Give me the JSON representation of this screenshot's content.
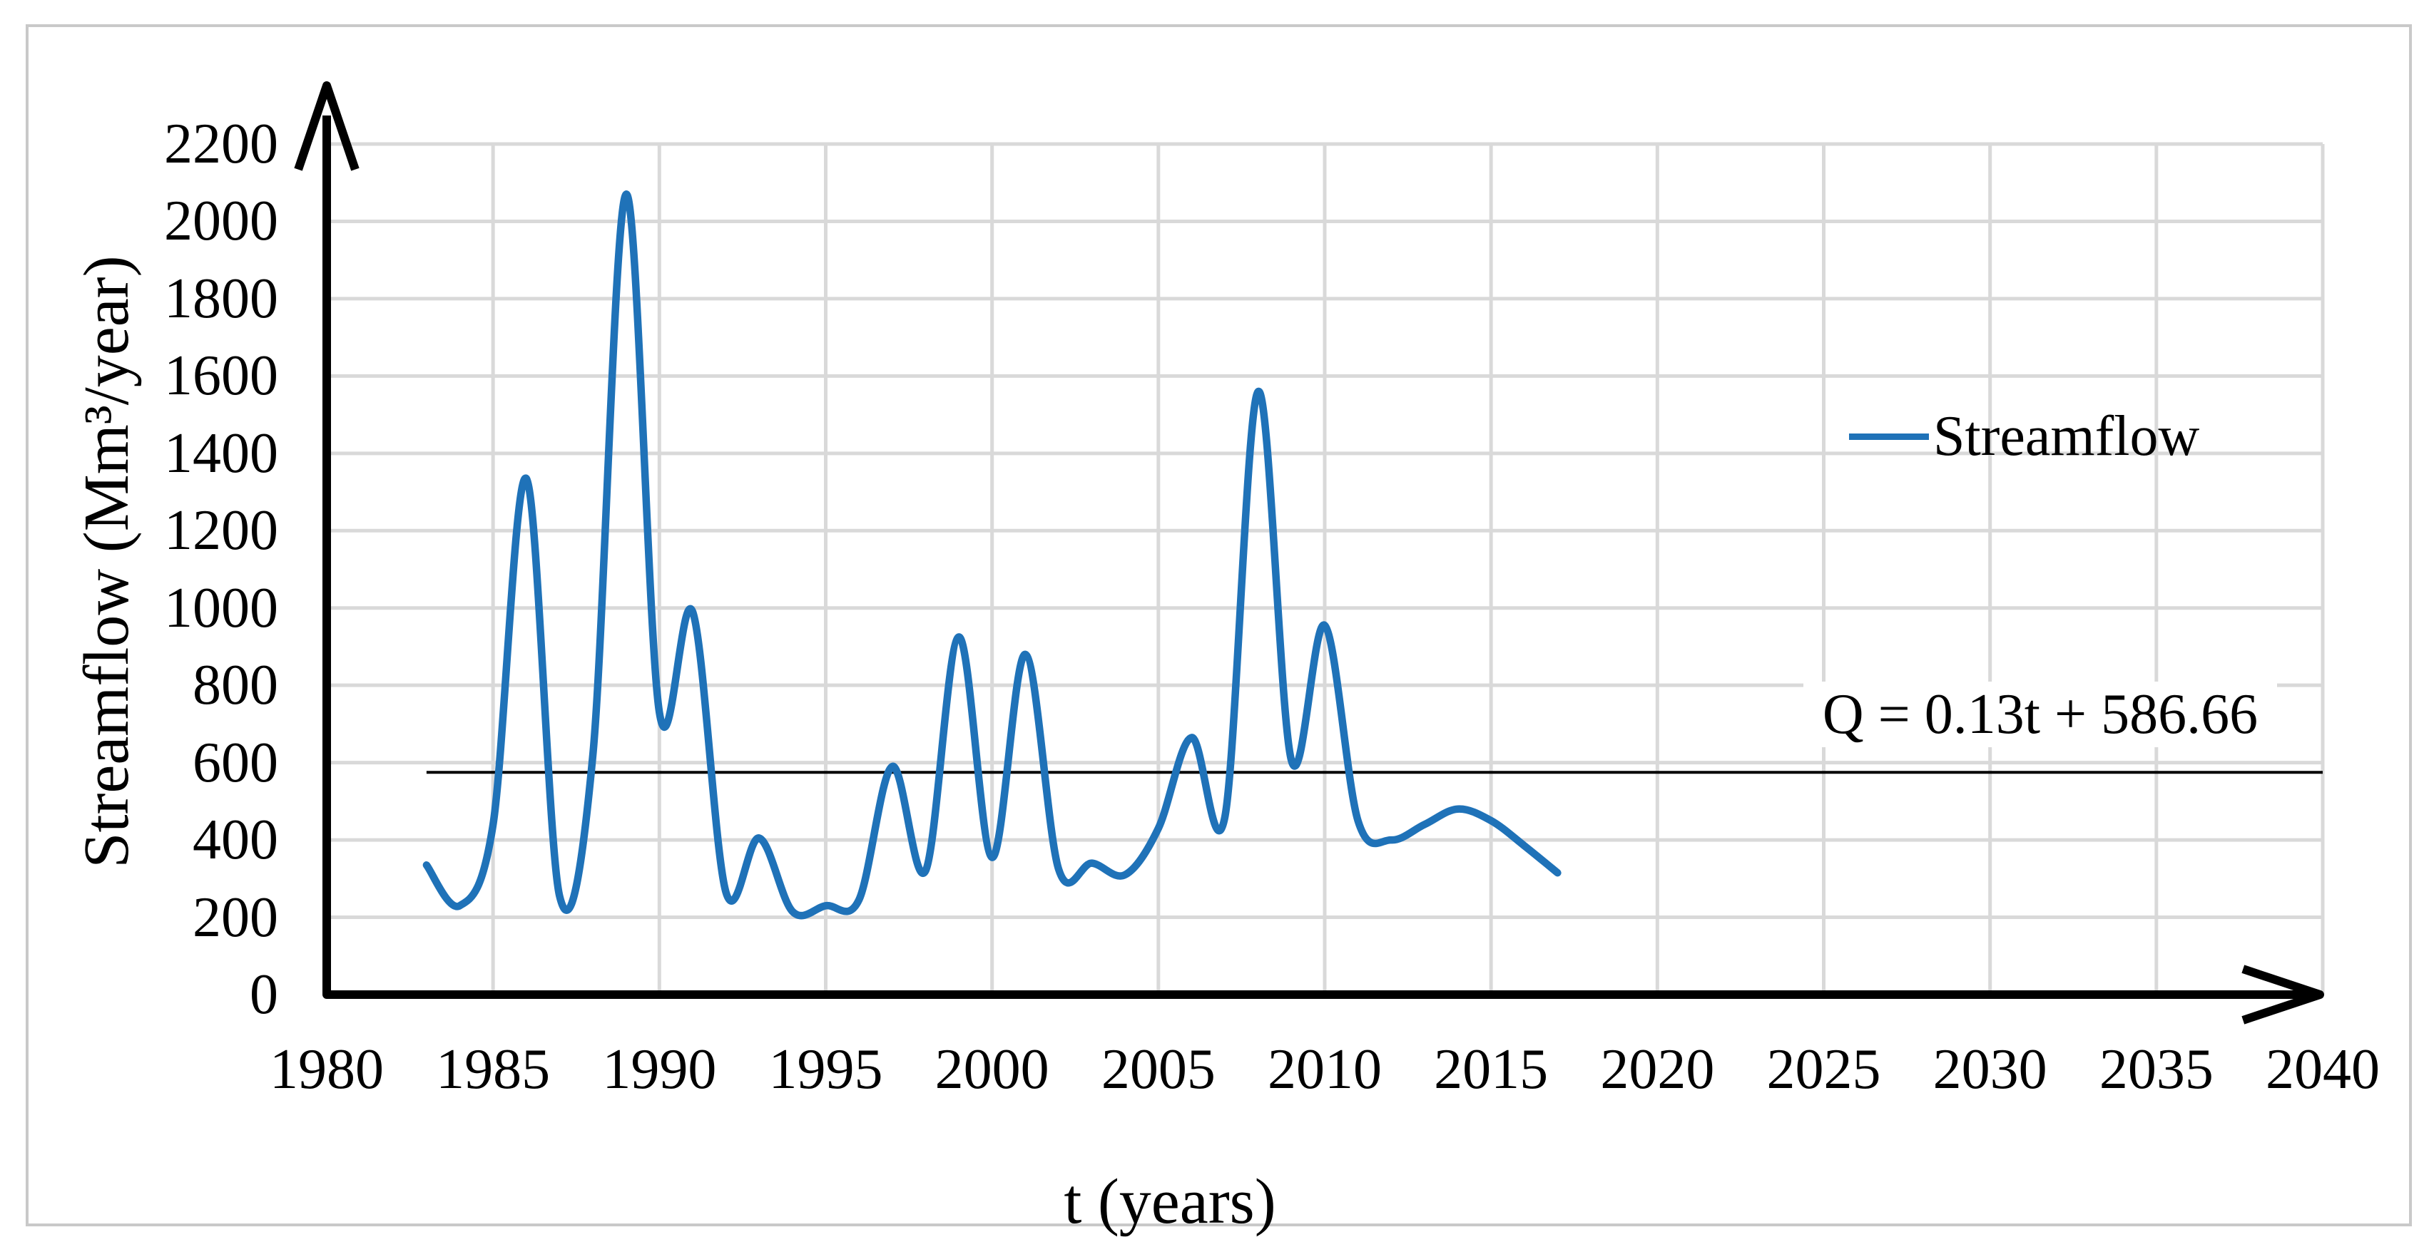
{
  "figure": {
    "background_color": "#ffffff",
    "border_color": "#c9c9c9",
    "gridline_color": "#d9d9d9",
    "axis_color": "#000000"
  },
  "chart_data": {
    "type": "line",
    "title": "",
    "xlabel": "t (years)",
    "ylabel": "Streamflow (Mm³/year)",
    "xlim": [
      1980,
      2040
    ],
    "ylim": [
      0,
      2200
    ],
    "x_ticks": [
      1980,
      1985,
      1990,
      1995,
      2000,
      2005,
      2010,
      2015,
      2020,
      2025,
      2030,
      2035,
      2040
    ],
    "y_ticks": [
      0,
      200,
      400,
      600,
      800,
      1000,
      1200,
      1400,
      1600,
      1800,
      2000,
      2200
    ],
    "grid": true,
    "legend": {
      "label": "Streamflow",
      "position": "right-middle"
    },
    "series": [
      {
        "name": "Streamflow",
        "color": "#1f72b8",
        "smooth": true,
        "x": [
          1983,
          1984,
          1985,
          1986,
          1987,
          1988,
          1989,
          1990,
          1991,
          1992,
          1993,
          1994,
          1995,
          1996,
          1997,
          1998,
          1999,
          2000,
          2001,
          2002,
          2003,
          2004,
          2005,
          2006,
          2007,
          2008,
          2009,
          2010,
          2011,
          2012,
          2013,
          2014,
          2015,
          2016,
          2017
        ],
        "values": [
          335,
          230,
          440,
          1335,
          255,
          620,
          2070,
          730,
          990,
          265,
          405,
          215,
          230,
          245,
          590,
          320,
          925,
          355,
          880,
          325,
          340,
          310,
          430,
          665,
          460,
          1560,
          605,
          955,
          450,
          400,
          440,
          480,
          450,
          385,
          315
        ]
      }
    ],
    "trendline": {
      "equation": "Q = 0.13t + 586.66",
      "value": 575,
      "x_start": 1983,
      "x_end": 2040,
      "color": "#000000"
    }
  }
}
